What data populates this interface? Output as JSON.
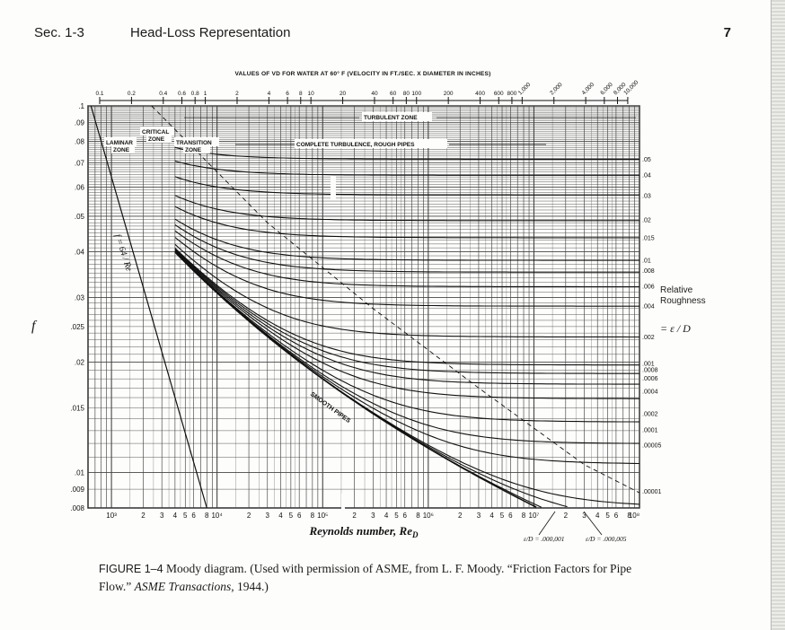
{
  "header": {
    "section": "Sec. 1-3",
    "title": "Head-Loss Representation",
    "page_number": "7"
  },
  "figure": {
    "top_axis_title": "VALUES OF VD FOR WATER AT 60° F (VELOCITY IN FT./SEC. X DIAMETER IN INCHES)",
    "top_ticks": [
      "0.1",
      "0.2",
      "0.4",
      "0.6",
      "0.8",
      "1",
      "2",
      "4",
      "6",
      "8",
      "10",
      "20",
      "40",
      "60",
      "80",
      "100",
      "200",
      "400",
      "600",
      "800",
      "1,000",
      "2,000",
      "4,000",
      "6,000",
      "8,000",
      "10,000"
    ],
    "y_label": "f",
    "y_ticks": [
      ".1",
      ".09",
      ".08",
      ".07",
      ".06",
      ".05",
      ".04",
      ".03",
      ".025",
      ".02",
      ".015",
      ".01",
      ".009",
      ".008"
    ],
    "x_title": "Reynolds number, Re",
    "x_title_sub": "D",
    "x_ticks": [
      "10³",
      "2",
      "3",
      "4",
      "5",
      "6",
      "8",
      "10⁴",
      "2",
      "3",
      "4",
      "5",
      "6",
      "8",
      "10⁵",
      "2",
      "3",
      "4",
      "5",
      "6",
      "8",
      "10⁶",
      "2",
      "3",
      "4",
      "5",
      "6",
      "8",
      "10⁷",
      "2",
      "3",
      "4",
      "5",
      "6",
      "8",
      "10⁸"
    ],
    "zone_labels": {
      "laminar": "LAMINAR ZONE",
      "critical": "CRITICAL ZONE",
      "transition": "TRANSITION ZONE",
      "turbulent": "TURBULENT ZONE",
      "complete": "COMPLETE TURBULENCE, ROUGH PIPES",
      "smooth": "SMOOTH PIPES",
      "laminar_eq": "f = 64 / Re"
    },
    "roughness_ticks": [
      ".05",
      ".04",
      ".03",
      ".02",
      ".015",
      ".01",
      ".008",
      ".006",
      ".004",
      ".002",
      ".001",
      ".0008",
      ".0006",
      ".0004",
      ".0002",
      ".0001",
      ".00005",
      ".00001"
    ],
    "rel_roughness_title": "Relative Roughness",
    "rel_roughness_eq": "= ε / D",
    "bottom_notes": [
      "ε/D = .000,001",
      "ε/D = .000,005"
    ]
  },
  "caption": {
    "figure_number": "FIGURE 1–4",
    "text_start": " Moody diagram. (Used with permission of ASME, from L. F. Moody. “Friction Factors for Pipe Flow.” ",
    "journal": "ASME Transactions",
    "text_end": ", 1944.)"
  },
  "chart_data": {
    "type": "line",
    "title": "",
    "xlabel": "Reynolds number, Re_D",
    "ylabel": "f",
    "x_scale": "log",
    "y_scale": "log",
    "xlim": [
      600,
      100000000
    ],
    "ylim": [
      0.008,
      0.1
    ],
    "series": [
      {
        "name": ".05",
        "x": [
          4000,
          20000,
          100000,
          100000000
        ],
        "y": [
          0.078,
          0.074,
          0.072,
          0.0717
        ]
      },
      {
        "name": ".03",
        "x": [
          4000,
          20000,
          100000,
          100000000
        ],
        "y": [
          0.063,
          0.059,
          0.0575,
          0.057
        ]
      },
      {
        "name": ".01",
        "x": [
          4000,
          20000,
          100000,
          100000000
        ],
        "y": [
          0.046,
          0.04,
          0.038,
          0.038
        ]
      },
      {
        "name": ".004",
        "x": [
          4000,
          20000,
          100000,
          100000000
        ],
        "y": [
          0.042,
          0.033,
          0.0295,
          0.0285
        ]
      },
      {
        "name": ".001",
        "x": [
          4000,
          20000,
          100000,
          1000000,
          100000000
        ],
        "y": [
          0.04,
          0.028,
          0.022,
          0.0198,
          0.0196
        ]
      },
      {
        "name": ".0001",
        "x": [
          4000,
          100000,
          1000000,
          100000000
        ],
        "y": [
          0.04,
          0.018,
          0.0135,
          0.012
        ]
      },
      {
        "name": ".00001",
        "x": [
          4000,
          100000,
          1000000,
          10000000,
          100000000
        ],
        "y": [
          0.04,
          0.018,
          0.0118,
          0.0092,
          0.0088
        ]
      },
      {
        "name": "smooth pipes",
        "x": [
          4000,
          100000,
          1000000,
          10000000,
          30000000
        ],
        "y": [
          0.04,
          0.018,
          0.0116,
          0.0081,
          0.0071
        ]
      },
      {
        "name": "f = 64/Re",
        "x": [
          640,
          2000
        ],
        "y": [
          0.1,
          0.032
        ]
      }
    ]
  }
}
